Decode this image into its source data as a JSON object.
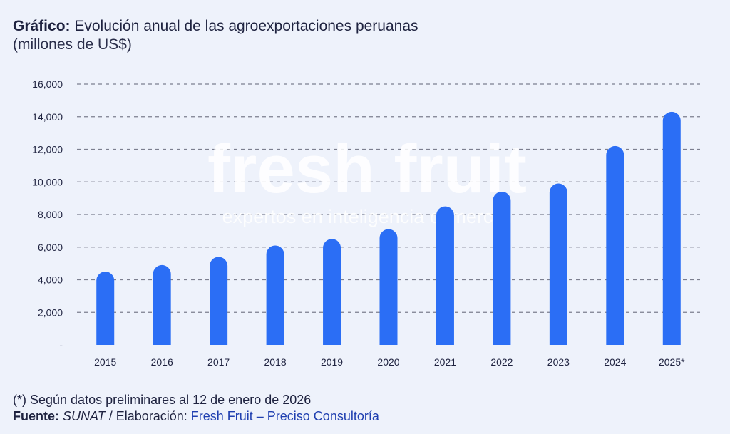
{
  "title": {
    "prefix": "Gráfico:",
    "text": " Evolución anual de las agroexportaciones peruanas",
    "unit": "(millones de US$)"
  },
  "watermark": {
    "brand": "fresh fruit",
    "tagline": "expertos en inteligencia comercial"
  },
  "footnote": {
    "note": "(*) Según datos preliminares al 12 de enero de 2026",
    "source_label": "Fuente:",
    "source_value": "SUNAT",
    "separator": " / Elaboración: ",
    "elaboration": "Fresh Fruit – Preciso Consultoría"
  },
  "colors": {
    "bar": "#2b6ef5",
    "grid": "#7c7f8f",
    "text": "#1f2340"
  },
  "chart_data": {
    "type": "bar",
    "categories": [
      "2015",
      "2016",
      "2017",
      "2018",
      "2019",
      "2020",
      "2021",
      "2022",
      "2023",
      "2024",
      "2025*"
    ],
    "values": [
      4500,
      4900,
      5400,
      6100,
      6500,
      7100,
      8500,
      9400,
      9900,
      12200,
      14300
    ],
    "ylim": [
      0,
      16000
    ],
    "yticks": [
      0,
      2000,
      4000,
      6000,
      8000,
      10000,
      12000,
      14000,
      16000
    ],
    "ytick_labels": [
      "-",
      "2,000",
      "4,000",
      "6,000",
      "8,000",
      "10,000",
      "12,000",
      "14,000",
      "16,000"
    ],
    "grid": true,
    "grid_style": "dashed"
  }
}
